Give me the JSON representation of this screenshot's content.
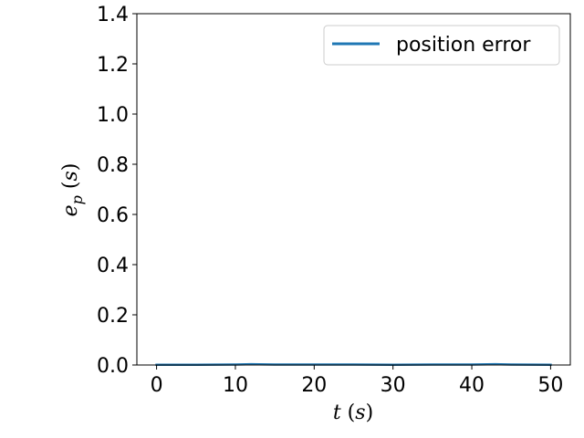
{
  "chart_data": {
    "type": "line",
    "xlabel": "t (s)",
    "ylabel": "e_p (s)",
    "xlim": [
      -2.5,
      52.5
    ],
    "ylim": [
      0,
      1.4
    ],
    "xticks": [
      0,
      10,
      20,
      30,
      40,
      50
    ],
    "yticks": [
      0.0,
      0.2,
      0.4,
      0.6,
      0.8,
      1.0,
      1.2,
      1.4
    ],
    "xtick_labels": [
      "0",
      "10",
      "20",
      "30",
      "40",
      "50"
    ],
    "ytick_labels": [
      "0.0",
      "0.2",
      "0.4",
      "0.6",
      "0.8",
      "1.0",
      "1.2",
      "1.4"
    ],
    "grid": false,
    "legend": {
      "position": "top-right"
    },
    "series": [
      {
        "name": "position error",
        "color": "#1f77b4",
        "x": [
          0,
          5,
          10,
          12,
          15,
          20,
          25,
          30,
          35,
          40,
          43,
          45,
          50
        ],
        "y": [
          0.001,
          0.001,
          0.002,
          0.003,
          0.002,
          0.002,
          0.002,
          0.001,
          0.002,
          0.002,
          0.003,
          0.002,
          0.001
        ]
      }
    ]
  }
}
